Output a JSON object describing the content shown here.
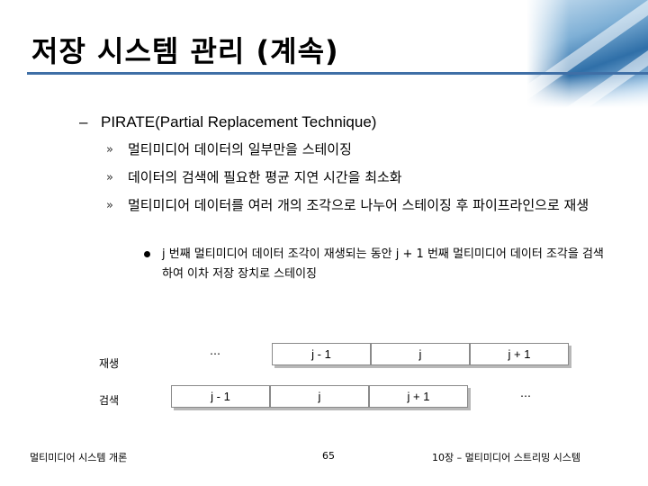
{
  "slide": {
    "title": "저장 시스템 관리 (계속)",
    "level1": {
      "dash": "–",
      "text": "PIRATE(Partial Replacement Technique)"
    },
    "bullets": [
      {
        "marker": "»",
        "text": "멀티미디어 데이터의 일부만을 스테이징"
      },
      {
        "marker": "»",
        "text": "데이터의 검색에 필요한 평균 지연 시간을 최소화"
      },
      {
        "marker": "»",
        "text": "멀티미디어 데이터를 여러 개의 조각으로 나누어 스테이징 후 파이프라인으로 재생"
      }
    ],
    "subbullet": "j 번째 멀티미디어 데이터 조각이 재생되는 동안 j + 1 번째 멀티미디어 데이터 조각을 검색하여 이차 저장 장치로 스테이징"
  },
  "diagram": {
    "playback": {
      "label": "재생",
      "ellipsis": "…",
      "segments": [
        "j - 1",
        "j",
        "j + 1"
      ]
    },
    "retrieval": {
      "label": "검색",
      "segments": [
        "j - 1",
        "j",
        "j + 1"
      ],
      "ellipsis": "…"
    }
  },
  "footer": {
    "left": "멀티미디어 시스템 개론",
    "page": "65",
    "right": "10장 – 멀티미디어 스트리밍 시스템"
  },
  "colors": {
    "title_rule": "#3f6fa6",
    "segment_shadow": "#b8b8b8"
  }
}
